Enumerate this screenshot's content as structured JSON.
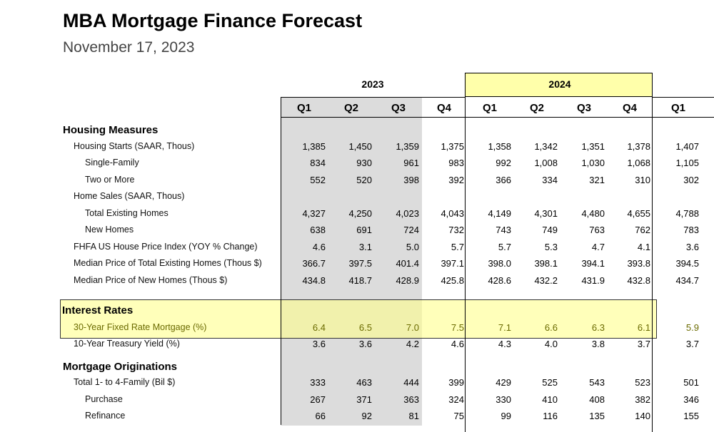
{
  "header": {
    "title": "MBA Mortgage Finance Forecast",
    "date": "November 17, 2023"
  },
  "years": [
    "2023",
    "2024"
  ],
  "quarters": [
    "Q1",
    "Q2",
    "Q3",
    "Q4",
    "Q1",
    "Q2",
    "Q3",
    "Q4",
    "Q1"
  ],
  "sections": {
    "housing": "Housing Measures",
    "rates": "Interest Rates",
    "originations": "Mortgage Originations"
  },
  "rows": {
    "housing_starts": {
      "label": "Housing Starts (SAAR, Thous)",
      "values": [
        "1,385",
        "1,450",
        "1,359",
        "1,375",
        "1,358",
        "1,342",
        "1,351",
        "1,378",
        "1,407"
      ]
    },
    "single_family": {
      "label": "Single-Family",
      "values": [
        "834",
        "930",
        "961",
        "983",
        "992",
        "1,008",
        "1,030",
        "1,068",
        "1,105"
      ]
    },
    "two_or_more": {
      "label": "Two or More",
      "values": [
        "552",
        "520",
        "398",
        "392",
        "366",
        "334",
        "321",
        "310",
        "302"
      ]
    },
    "home_sales": {
      "label": "Home Sales (SAAR, Thous)",
      "values": []
    },
    "existing_homes": {
      "label": "Total Existing Homes",
      "values": [
        "4,327",
        "4,250",
        "4,023",
        "4,043",
        "4,149",
        "4,301",
        "4,480",
        "4,655",
        "4,788"
      ]
    },
    "new_homes": {
      "label": "New Homes",
      "values": [
        "638",
        "691",
        "724",
        "732",
        "743",
        "749",
        "763",
        "762",
        "783"
      ]
    },
    "fhfa": {
      "label": "FHFA US House Price Index (YOY % Change)",
      "values": [
        "4.6",
        "3.1",
        "5.0",
        "5.7",
        "5.7",
        "5.3",
        "4.7",
        "4.1",
        "3.6"
      ]
    },
    "median_existing": {
      "label": "Median Price of Total Existing Homes (Thous $)",
      "values": [
        "366.7",
        "397.5",
        "401.4",
        "397.1",
        "398.0",
        "398.1",
        "394.1",
        "393.8",
        "394.5"
      ]
    },
    "median_new": {
      "label": "Median Price of New Homes (Thous $)",
      "values": [
        "434.8",
        "418.7",
        "428.9",
        "425.8",
        "428.6",
        "432.2",
        "431.9",
        "432.8",
        "434.7"
      ]
    },
    "fixed_30": {
      "label": "30-Year Fixed Rate Mortgage (%)",
      "values": [
        "6.4",
        "6.5",
        "7.0",
        "7.5",
        "7.1",
        "6.6",
        "6.3",
        "6.1",
        "5.9"
      ]
    },
    "treasury_10": {
      "label": "10-Year Treasury Yield (%)",
      "values": [
        "3.6",
        "3.6",
        "4.2",
        "4.6",
        "4.3",
        "4.0",
        "3.8",
        "3.7",
        "3.7"
      ]
    },
    "total_orig": {
      "label": "Total 1- to 4-Family (Bil $)",
      "values": [
        "333",
        "463",
        "444",
        "399",
        "429",
        "525",
        "543",
        "523",
        "501"
      ]
    },
    "purchase": {
      "label": "Purchase",
      "values": [
        "267",
        "371",
        "363",
        "324",
        "330",
        "410",
        "408",
        "382",
        "346"
      ]
    },
    "refinance": {
      "label": "Refinance",
      "values": [
        "66",
        "92",
        "81",
        "75",
        "99",
        "116",
        "135",
        "140",
        "155"
      ]
    }
  }
}
